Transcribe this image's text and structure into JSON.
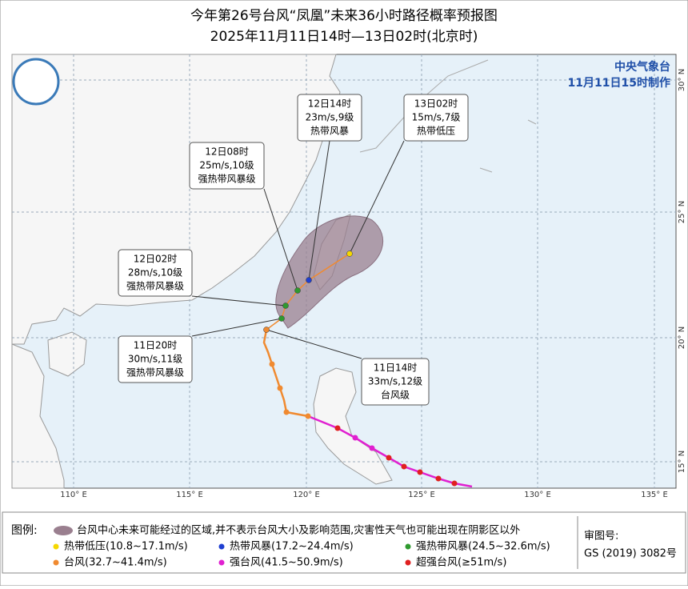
{
  "header": {
    "title": "今年第26号台风“凤凰”未来36小时路径概率预报图",
    "subtitle": "2025年11月11日14时—13日02时(北京时)"
  },
  "issuer": {
    "name": "中央气象台",
    "made": "11月11日15时制作"
  },
  "forecasts": [
    {
      "time": "13日02时",
      "wind": "15m/s,7级",
      "level": "热带低压"
    },
    {
      "time": "12日14时",
      "wind": "23m/s,9级",
      "level": "热带风暴"
    },
    {
      "time": "12日08时",
      "wind": "25m/s,10级",
      "level": "强热带风暴级"
    },
    {
      "time": "12日02时",
      "wind": "28m/s,10级",
      "level": "强热带风暴级"
    },
    {
      "time": "11日20时",
      "wind": "30m/s,11级",
      "level": "强热带风暴级"
    },
    {
      "time": "11日14时",
      "wind": "33m/s,12级",
      "level": "台风级"
    }
  ],
  "axes": {
    "lon": [
      "110° E",
      "115° E",
      "120° E",
      "125° E",
      "130° E",
      "135° E"
    ],
    "lat": [
      "30° N",
      "25° N",
      "20° N",
      "15° N"
    ]
  },
  "legend": {
    "title": "图例:",
    "cone": "台风中心未来可能经过的区域,并不表示台风大小及影响范围,灾害性天气也可能出现在阴影区以外",
    "items": [
      {
        "label": "热带低压(10.8~17.1m/s)",
        "color": "#f5d800"
      },
      {
        "label": "热带风暴(17.2~24.4m/s)",
        "color": "#1f3fd1"
      },
      {
        "label": "强热带风暴(24.5~32.6m/s)",
        "color": "#2f9a2f"
      },
      {
        "label": "台风(32.7~41.4m/s)",
        "color": "#f08a30"
      },
      {
        "label": "强台风(41.5~50.9m/s)",
        "color": "#e020d0"
      },
      {
        "label": "超强台风(≥51m/s)",
        "color": "#e02020"
      }
    ]
  },
  "review": {
    "label": "审图号:",
    "number": "GS (2019) 3082号"
  }
}
